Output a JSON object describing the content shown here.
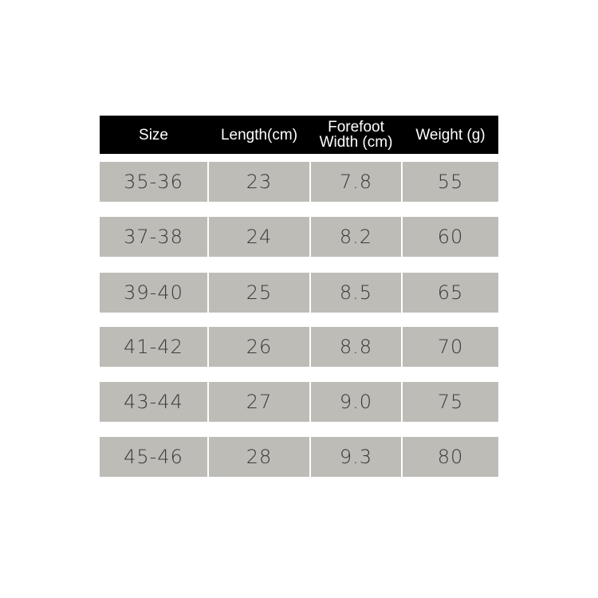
{
  "table": {
    "header": [
      "Size",
      "Length(cm)",
      "Forefoot\nWidth (cm)",
      "Weight (g)"
    ],
    "rows": [
      [
        "35-36",
        "23",
        "7.8",
        "55"
      ],
      [
        "37-38",
        "24",
        "8.2",
        "60"
      ],
      [
        "39-40",
        "25",
        "8.5",
        "65"
      ],
      [
        "41-42",
        "26",
        "8.8",
        "70"
      ],
      [
        "43-44",
        "27",
        "9.0",
        "75"
      ],
      [
        "45-46",
        "28",
        "9.3",
        "80"
      ]
    ]
  }
}
